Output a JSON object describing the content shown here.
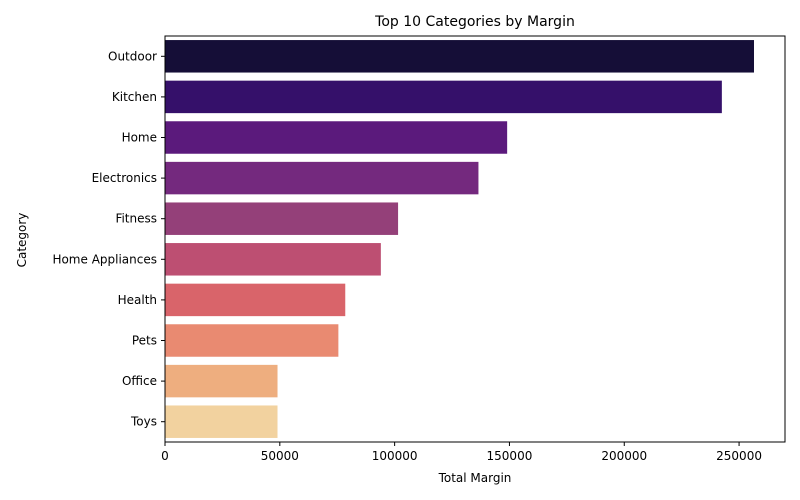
{
  "chart_data": {
    "type": "bar",
    "orientation": "horizontal",
    "title": "Top 10 Categories by Margin",
    "xlabel": "Total Margin",
    "ylabel": "Category",
    "categories": [
      "Outdoor",
      "Kitchen",
      "Home",
      "Electronics",
      "Fitness",
      "Home Appliances",
      "Health",
      "Pets",
      "Office",
      "Toys"
    ],
    "values": [
      256500,
      242500,
      149000,
      136500,
      101500,
      94000,
      78500,
      75500,
      49000,
      49000
    ],
    "colors": [
      "#150E37",
      "#35106A",
      "#5B1A7C",
      "#74297E",
      "#944079",
      "#BD4F72",
      "#D9646A",
      "#E98A71",
      "#EEAE7F",
      "#F2D29F"
    ],
    "xlim": [
      0,
      270000
    ],
    "xticks": [
      0,
      50000,
      100000,
      150000,
      200000,
      250000
    ],
    "xtick_labels": [
      "0",
      "50000",
      "100000",
      "150000",
      "200000",
      "250000"
    ],
    "grid": false,
    "legend": "none"
  }
}
